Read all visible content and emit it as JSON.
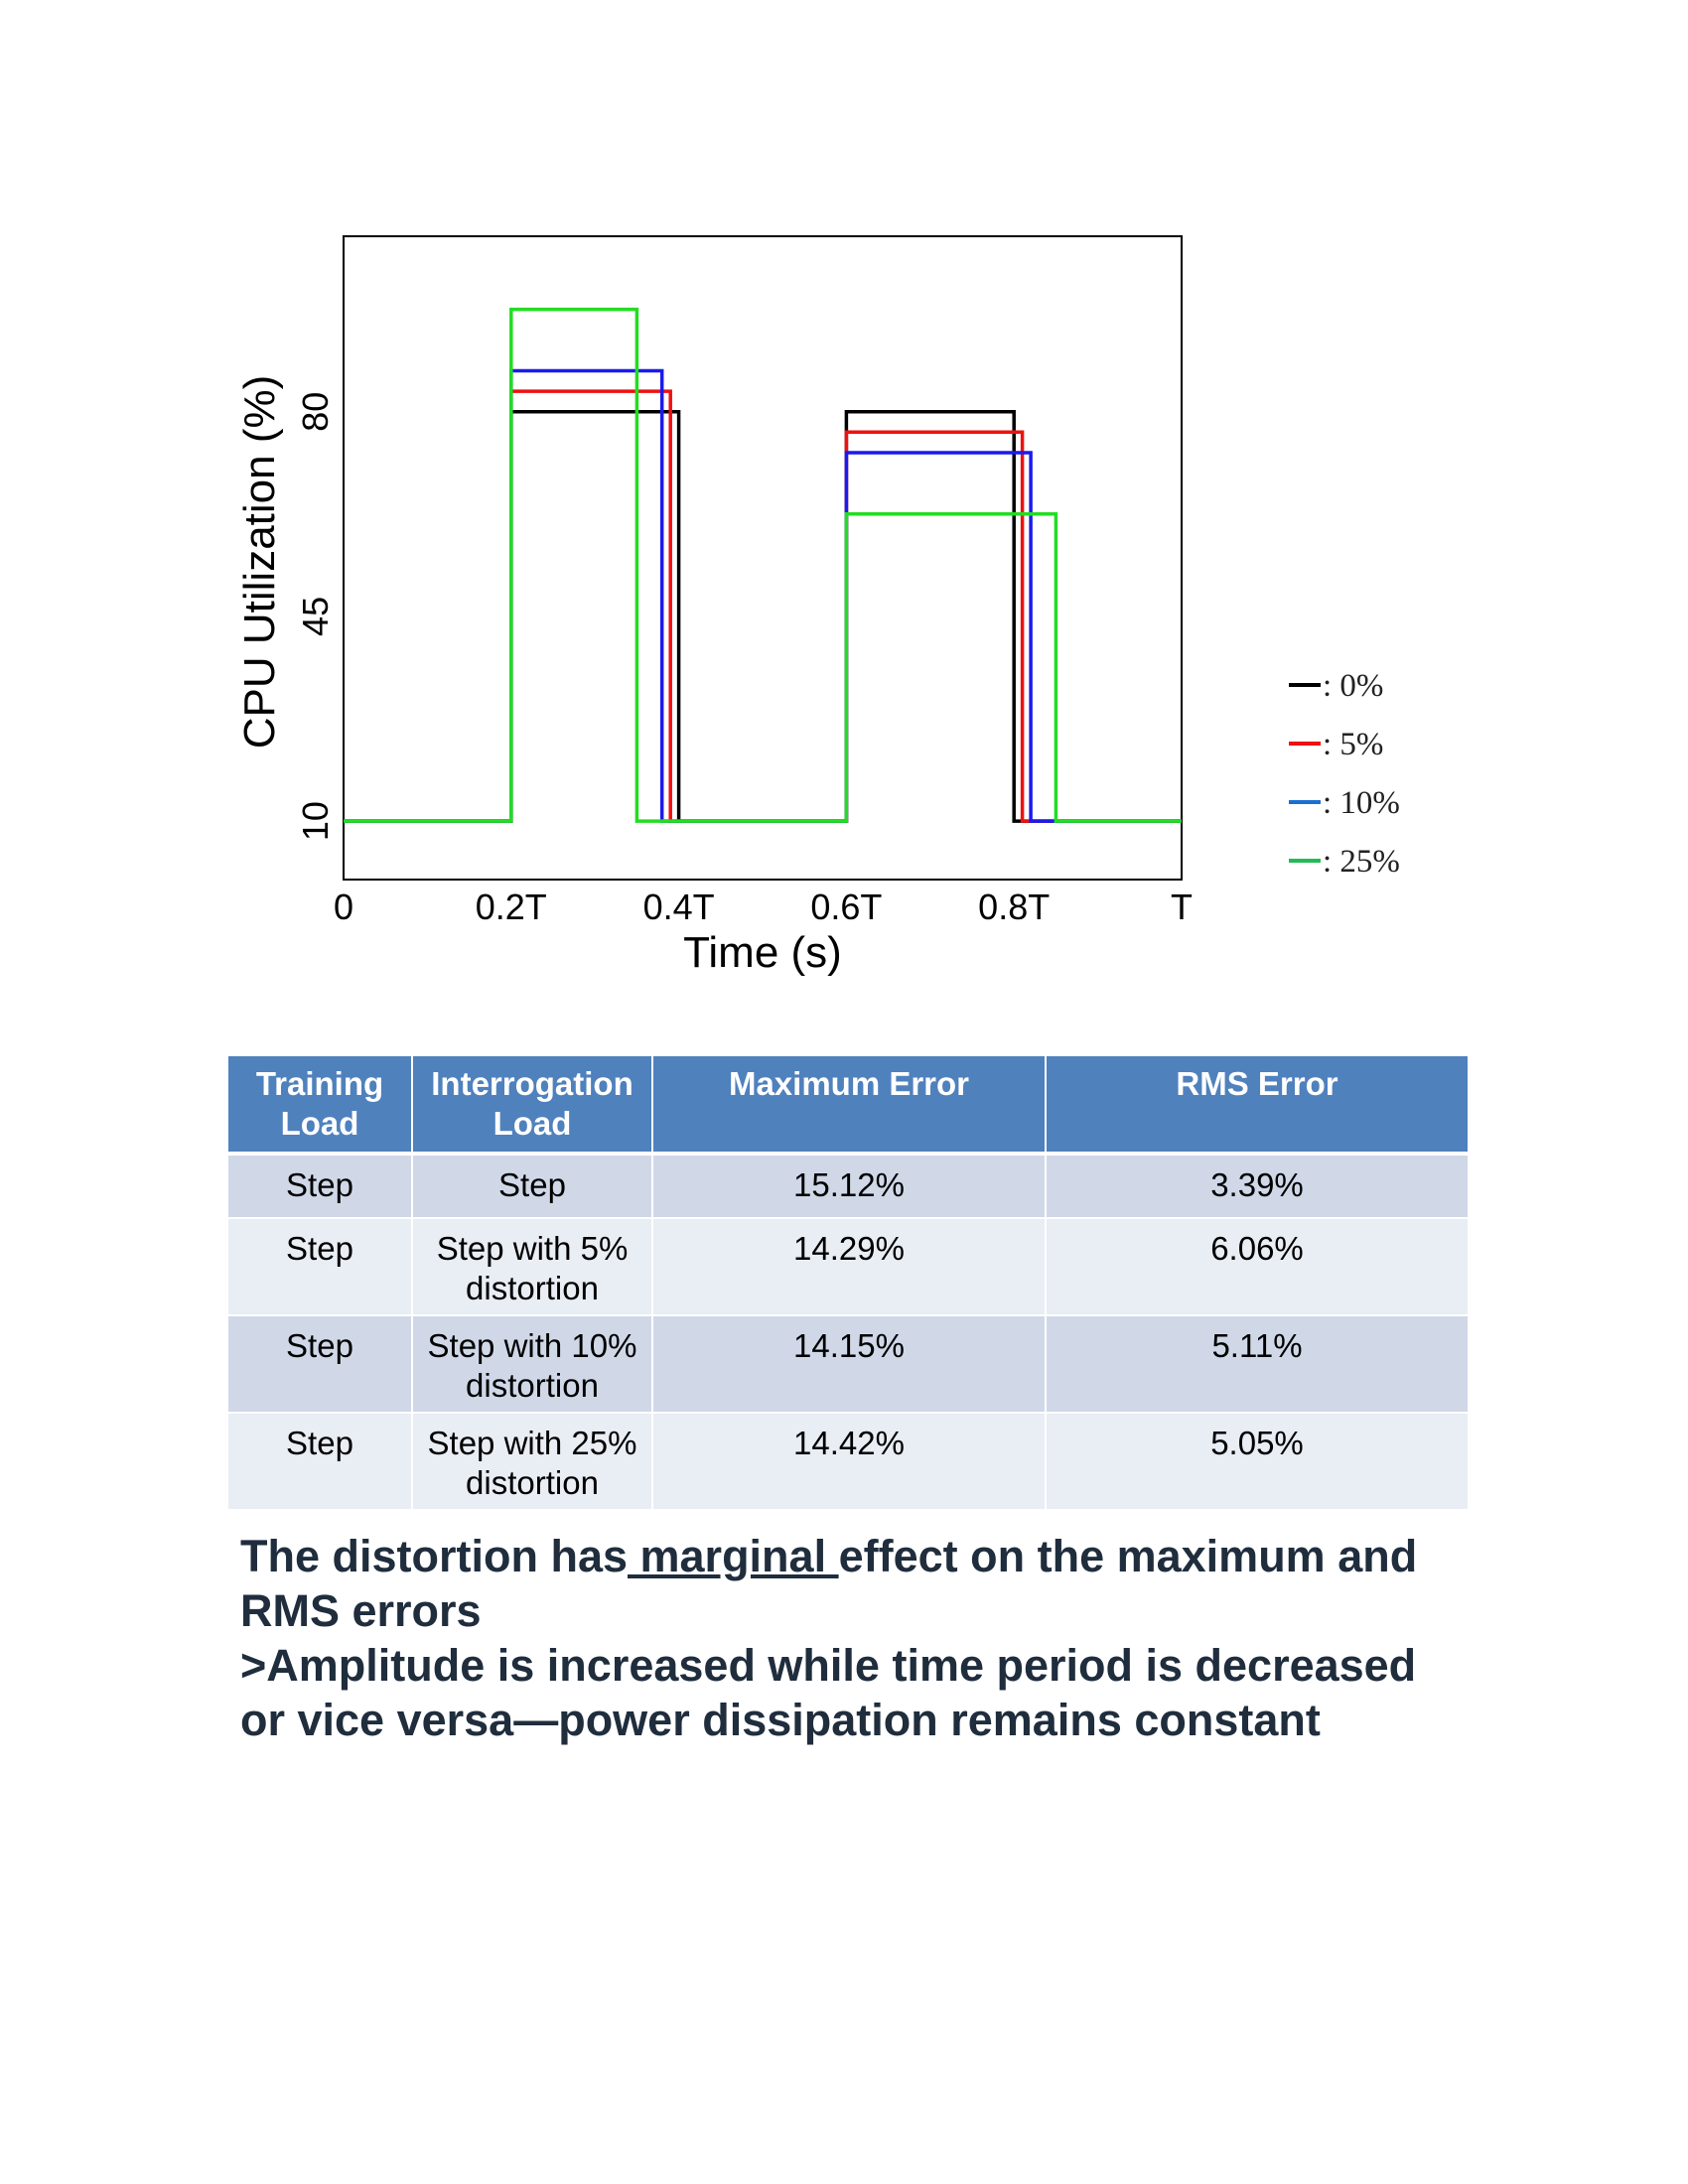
{
  "chart_data": {
    "type": "line",
    "step": true,
    "xlabel": "Time (s)",
    "ylabel": "CPU Utilization (%)",
    "xlim": [
      0,
      1
    ],
    "ylim": [
      0,
      110
    ],
    "x_ticks": [
      {
        "value": 0,
        "label": "0"
      },
      {
        "value": 0.2,
        "label": "0.2T"
      },
      {
        "value": 0.4,
        "label": "0.4T"
      },
      {
        "value": 0.6,
        "label": "0.6T"
      },
      {
        "value": 0.8,
        "label": "0.8T"
      },
      {
        "value": 1.0,
        "label": "T"
      }
    ],
    "y_ticks": [
      {
        "value": 10,
        "label": "10"
      },
      {
        "value": 45,
        "label": "45"
      },
      {
        "value": 80,
        "label": "80"
      }
    ],
    "grid": false,
    "legend_position": "right",
    "series": [
      {
        "name": "0%",
        "color": "#000000",
        "x": [
          0,
          0.2,
          0.2,
          0.4,
          0.4,
          0.6,
          0.6,
          0.8,
          0.8,
          1.0
        ],
        "y": [
          10,
          10,
          80,
          80,
          10,
          10,
          80,
          80,
          10,
          10
        ]
      },
      {
        "name": "5%",
        "color": "#ee1111",
        "x": [
          0,
          0.2,
          0.2,
          0.39,
          0.39,
          0.6,
          0.6,
          0.81,
          0.81,
          1.0
        ],
        "y": [
          10,
          10,
          83.5,
          83.5,
          10,
          10,
          76.5,
          76.5,
          10,
          10
        ]
      },
      {
        "name": "10%",
        "color": "#1a1aee",
        "x": [
          0,
          0.2,
          0.2,
          0.38,
          0.38,
          0.6,
          0.6,
          0.82,
          0.82,
          1.0
        ],
        "y": [
          10,
          10,
          87,
          87,
          10,
          10,
          73,
          73,
          10,
          10
        ]
      },
      {
        "name": "25%",
        "color": "#22dd22",
        "x": [
          0,
          0.2,
          0.2,
          0.35,
          0.35,
          0.6,
          0.6,
          0.85,
          0.85,
          1.0
        ],
        "y": [
          10,
          10,
          97.5,
          97.5,
          10,
          10,
          62.5,
          62.5,
          10,
          10
        ]
      }
    ],
    "legend": [
      {
        "label": ": 0%",
        "color": "#000000"
      },
      {
        "label": ": 5%",
        "color": "#ee1111"
      },
      {
        "label": ": 10%",
        "color": "#1a6fd0"
      },
      {
        "label": ": 25%",
        "color": "#22bb55"
      }
    ]
  },
  "table": {
    "headers": [
      "Training Load",
      "Interrogation Load",
      "Maximum Error",
      "RMS Error"
    ],
    "rows": [
      {
        "training": "Step",
        "interrogation": "Step",
        "max_error": "15.12%",
        "rms_error": "3.39%"
      },
      {
        "training": "Step",
        "interrogation": "Step with 5% distortion",
        "max_error": "14.29%",
        "rms_error": "6.06%"
      },
      {
        "training": "Step",
        "interrogation": "Step with 10% distortion",
        "max_error": "14.15%",
        "rms_error": "5.11%"
      },
      {
        "training": "Step",
        "interrogation": "Step with 25% distortion",
        "max_error": "14.42%",
        "rms_error": "5.05%"
      }
    ]
  },
  "conclusion": {
    "line1_pre": "The distortion has",
    "line1_underlined": " marginal ",
    "line1_post": "effect on the maximum and RMS errors",
    "line2": " >Amplitude is increased while time period is decreased or vice versa—power dissipation remains constant"
  }
}
